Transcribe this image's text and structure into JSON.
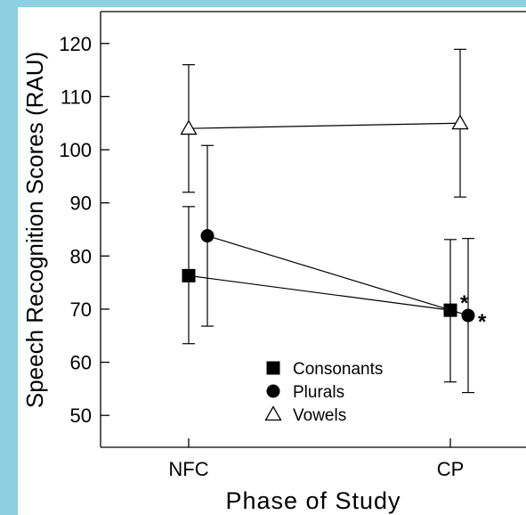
{
  "chart_data": {
    "type": "line",
    "title": "",
    "xlabel": "Phase of Study",
    "ylabel": "Speech Recognition Scores (RAU)",
    "categories": [
      "NFC",
      "CP"
    ],
    "ylim": [
      44,
      126
    ],
    "yticks": [
      50,
      60,
      70,
      80,
      90,
      100,
      110,
      120
    ],
    "grid": false,
    "legend_position": "bottom-center",
    "series": [
      {
        "name": "Consonants",
        "marker": "square",
        "values": [
          76.3,
          69.8
        ],
        "err_low": [
          63.5,
          56.3
        ],
        "err_high": [
          89.3,
          83.1
        ],
        "annotations": [
          "",
          "*"
        ]
      },
      {
        "name": "Plurals",
        "marker": "circle",
        "values": [
          83.8,
          68.8
        ],
        "err_low": [
          66.8,
          54.3
        ],
        "err_high": [
          100.8,
          83.3
        ],
        "annotations": [
          "",
          "*"
        ]
      },
      {
        "name": "Vowels",
        "marker": "triangle-open",
        "values": [
          104.0,
          105.0
        ],
        "err_low": [
          92.0,
          91.1
        ],
        "err_high": [
          116.0,
          118.9
        ],
        "annotations": [
          "",
          ""
        ]
      }
    ],
    "colors": {
      "ink": "#000000",
      "background": "#ffffff",
      "frame": "#8fd0e0"
    }
  }
}
